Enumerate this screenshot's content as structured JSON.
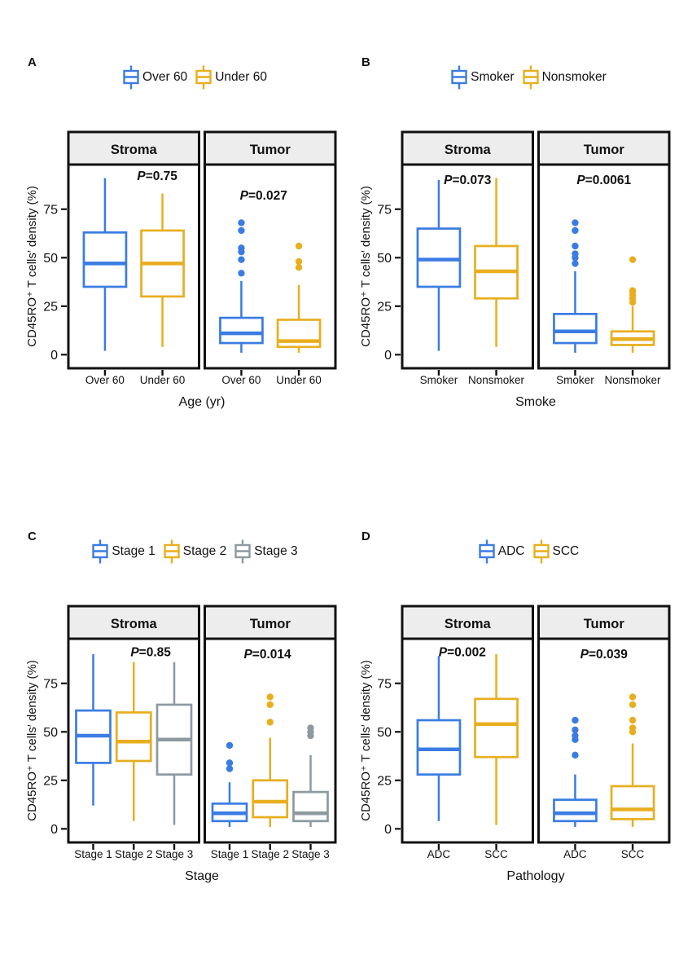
{
  "figure": {
    "ylabel": "CD45RO⁺ T cells′  density (%)",
    "yticks": [
      0,
      25,
      50,
      75
    ],
    "facet_strip_fill": "#EDEDED",
    "frame_color": "#111111"
  },
  "chart_data": {
    "type": "boxplot",
    "ylim": [
      -7,
      98
    ],
    "colors": {
      "blue": "#3A7CE3",
      "yellow": "#E8AE1E",
      "gray": "#8C9AA0"
    },
    "panels": [
      {
        "label": "A",
        "xlabel": "Age (yr)",
        "legend": [
          {
            "name": "Over 60",
            "color": "#3A7CE3"
          },
          {
            "name": "Under 60",
            "color": "#E8AE1E"
          }
        ],
        "facets": [
          {
            "title": "Stroma",
            "p_label": "P=0.75",
            "p_x": 0.68,
            "p_y": 90,
            "boxes": [
              {
                "group": "Over 60",
                "color": "#3A7CE3",
                "whisker_low": 2,
                "q1": 35,
                "median": 47,
                "q3": 63,
                "whisker_high": 91,
                "outliers": []
              },
              {
                "group": "Under 60",
                "color": "#E8AE1E",
                "whisker_low": 4,
                "q1": 30,
                "median": 47,
                "q3": 64,
                "whisker_high": 83,
                "outliers": []
              }
            ]
          },
          {
            "title": "Tumor",
            "p_label": "P=0.027",
            "p_x": 0.45,
            "p_y": 80,
            "boxes": [
              {
                "group": "Over 60",
                "color": "#3A7CE3",
                "whisker_low": 1,
                "q1": 6,
                "median": 11,
                "q3": 19,
                "whisker_high": 38,
                "outliers": [
                  42,
                  49,
                  53,
                  55,
                  64,
                  68
                ]
              },
              {
                "group": "Under 60",
                "color": "#E8AE1E",
                "whisker_low": 1,
                "q1": 4,
                "median": 7,
                "q3": 18,
                "whisker_high": 36,
                "outliers": [
                  45,
                  48,
                  56
                ]
              }
            ]
          }
        ]
      },
      {
        "label": "B",
        "xlabel": "Smoke",
        "legend": [
          {
            "name": "Smoker",
            "color": "#3A7CE3"
          },
          {
            "name": "Nonsmoker",
            "color": "#E8AE1E"
          }
        ],
        "facets": [
          {
            "title": "Stroma",
            "p_label": "P=0.073",
            "p_x": 0.5,
            "p_y": 88,
            "boxes": [
              {
                "group": "Smoker",
                "color": "#3A7CE3",
                "whisker_low": 2,
                "q1": 35,
                "median": 49,
                "q3": 65,
                "whisker_high": 90,
                "outliers": []
              },
              {
                "group": "Nonsmoker",
                "color": "#E8AE1E",
                "whisker_low": 4,
                "q1": 29,
                "median": 43,
                "q3": 56,
                "whisker_high": 91,
                "outliers": []
              }
            ]
          },
          {
            "title": "Tumor",
            "p_label": "P=0.0061",
            "p_x": 0.5,
            "p_y": 88,
            "boxes": [
              {
                "group": "Smoker",
                "color": "#3A7CE3",
                "whisker_low": 1,
                "q1": 6,
                "median": 12,
                "q3": 21,
                "whisker_high": 43,
                "outliers": [
                  47,
                  50,
                  52,
                  56,
                  64,
                  68
                ]
              },
              {
                "group": "Nonsmoker",
                "color": "#E8AE1E",
                "whisker_low": 1,
                "q1": 5,
                "median": 8,
                "q3": 12,
                "whisker_high": 25,
                "outliers": [
                  27,
                  29,
                  31,
                  33,
                  49
                ]
              }
            ]
          }
        ]
      },
      {
        "label": "C",
        "xlabel": "Stage",
        "legend": [
          {
            "name": "Stage 1",
            "color": "#3A7CE3"
          },
          {
            "name": "Stage 2",
            "color": "#E8AE1E"
          },
          {
            "name": "Stage 3",
            "color": "#8C9AA0"
          }
        ],
        "facets": [
          {
            "title": "Stroma",
            "p_label": "P=0.85",
            "p_x": 0.63,
            "p_y": 89,
            "boxes": [
              {
                "group": "Stage 1",
                "color": "#3A7CE3",
                "whisker_low": 12,
                "q1": 34,
                "median": 48,
                "q3": 61,
                "whisker_high": 90,
                "outliers": []
              },
              {
                "group": "Stage 2",
                "color": "#E8AE1E",
                "whisker_low": 4,
                "q1": 35,
                "median": 45,
                "q3": 60,
                "whisker_high": 86,
                "outliers": []
              },
              {
                "group": "Stage 3",
                "color": "#8C9AA0",
                "whisker_low": 2,
                "q1": 28,
                "median": 46,
                "q3": 64,
                "whisker_high": 86,
                "outliers": []
              }
            ]
          },
          {
            "title": "Tumor",
            "p_label": "P=0.014",
            "p_x": 0.48,
            "p_y": 88,
            "boxes": [
              {
                "group": "Stage 1",
                "color": "#3A7CE3",
                "whisker_low": 1,
                "q1": 4,
                "median": 8,
                "q3": 13,
                "whisker_high": 24,
                "outliers": [
                  31,
                  34,
                  43
                ]
              },
              {
                "group": "Stage 2",
                "color": "#E8AE1E",
                "whisker_low": 1,
                "q1": 6,
                "median": 14,
                "q3": 25,
                "whisker_high": 47,
                "outliers": [
                  55,
                  64,
                  68
                ]
              },
              {
                "group": "Stage 3",
                "color": "#8C9AA0",
                "whisker_low": 1,
                "q1": 4,
                "median": 8,
                "q3": 19,
                "whisker_high": 38,
                "outliers": [
                  48,
                  50,
                  52
                ]
              }
            ]
          }
        ]
      },
      {
        "label": "D",
        "xlabel": "Pathology",
        "legend": [
          {
            "name": "ADC",
            "color": "#3A7CE3"
          },
          {
            "name": "SCC",
            "color": "#E8AE1E"
          }
        ],
        "facets": [
          {
            "title": "Stroma",
            "p_label": "P=0.002",
            "p_x": 0.46,
            "p_y": 89,
            "boxes": [
              {
                "group": "ADC",
                "color": "#3A7CE3",
                "whisker_low": 4,
                "q1": 28,
                "median": 41,
                "q3": 56,
                "whisker_high": 89,
                "outliers": []
              },
              {
                "group": "SCC",
                "color": "#E8AE1E",
                "whisker_low": 2,
                "q1": 37,
                "median": 54,
                "q3": 67,
                "whisker_high": 90,
                "outliers": []
              }
            ]
          },
          {
            "title": "Tumor",
            "p_label": "P=0.039",
            "p_x": 0.5,
            "p_y": 88,
            "boxes": [
              {
                "group": "ADC",
                "color": "#3A7CE3",
                "whisker_low": 1,
                "q1": 4,
                "median": 8,
                "q3": 15,
                "whisker_high": 28,
                "outliers": [
                  38,
                  46,
                  48,
                  51,
                  56
                ]
              },
              {
                "group": "SCC",
                "color": "#E8AE1E",
                "whisker_low": 1,
                "q1": 5,
                "median": 10,
                "q3": 22,
                "whisker_high": 44,
                "outliers": [
                  50,
                  52,
                  56,
                  64,
                  68
                ]
              }
            ]
          }
        ]
      }
    ]
  }
}
